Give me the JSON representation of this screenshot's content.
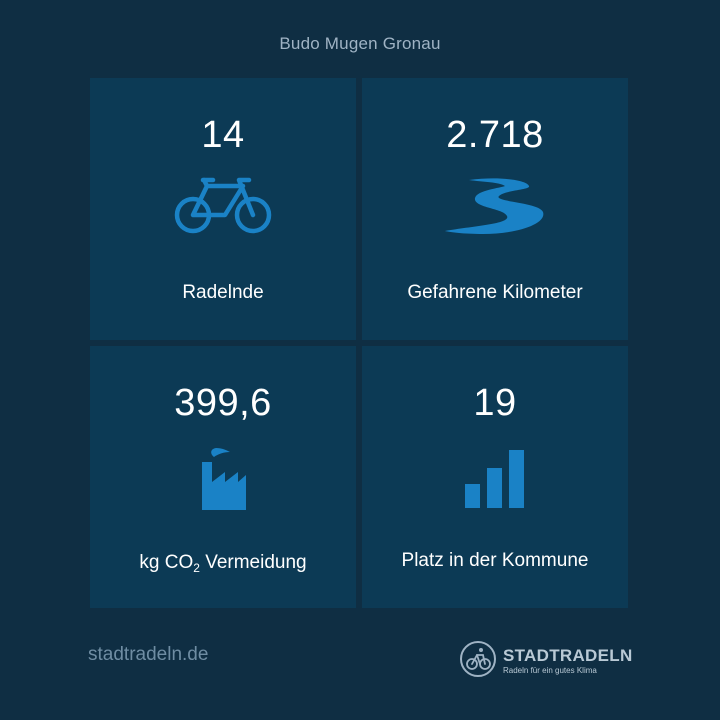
{
  "header": {
    "team_name": "Budo Mugen Gronau"
  },
  "stats": [
    {
      "value": "14",
      "label": "Radelnde",
      "icon": "bicycle-icon"
    },
    {
      "value": "2.718",
      "label": "Gefahrene Kilometer",
      "icon": "road-icon"
    },
    {
      "value": "399,6",
      "label_prefix": "kg CO",
      "label_sub": "2",
      "label_suffix": " Vermeidung",
      "icon": "factory-icon"
    },
    {
      "value": "19",
      "label": "Platz in der Kommune",
      "icon": "bar-chart-icon"
    }
  ],
  "footer": {
    "website": "stadtradeln.de",
    "brand_name": "STADTRADELN",
    "brand_tagline": "Radeln für ein gutes Klima"
  },
  "colors": {
    "background": "#0f2e43",
    "tile": "#0c3a55",
    "accent": "#1a82c6",
    "muted_text": "#9fb3c4"
  }
}
